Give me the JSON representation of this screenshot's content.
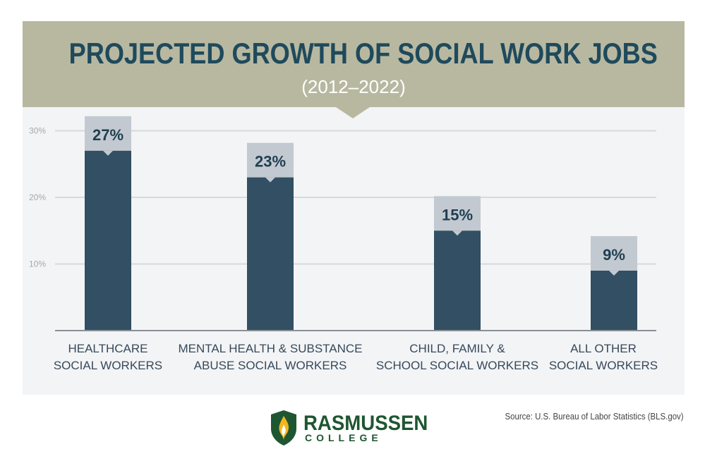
{
  "header": {
    "title": "PROJECTED GROWTH OF SOCIAL WORK JOBS",
    "subtitle": "(2012–2022)"
  },
  "chart_data": {
    "type": "bar",
    "title": "PROJECTED GROWTH OF SOCIAL WORK JOBS",
    "subtitle": "(2012–2022)",
    "categories": [
      [
        "HEALTHCARE",
        "SOCIAL WORKERS"
      ],
      [
        "MENTAL HEALTH & SUBSTANCE",
        "ABUSE SOCIAL WORKERS"
      ],
      [
        "CHILD, FAMILY &",
        "SCHOOL SOCIAL WORKERS"
      ],
      [
        "ALL OTHER",
        "SOCIAL WORKERS"
      ]
    ],
    "values": [
      27,
      23,
      15,
      9
    ],
    "value_labels": [
      "27%",
      "23%",
      "15%",
      "9%"
    ],
    "yticks": [
      10,
      20,
      30
    ],
    "ytick_labels": [
      "10%",
      "20%",
      "30%"
    ],
    "ylim": [
      0,
      30
    ],
    "grid": true,
    "xlabel": "",
    "ylabel": "",
    "colors": {
      "bar": "#324f63",
      "cap": "#c3c9d0",
      "grid": "#d7d9dd",
      "axis": "#8a8f96"
    }
  },
  "footer": {
    "source": "Source: U.S. Bureau of Labor Statistics (BLS.gov)",
    "logo_name": "RASMUSSEN",
    "logo_sub": "COLLEGE",
    "brand_color": "#1e5631",
    "logo_icon": "shield-flame-icon"
  }
}
